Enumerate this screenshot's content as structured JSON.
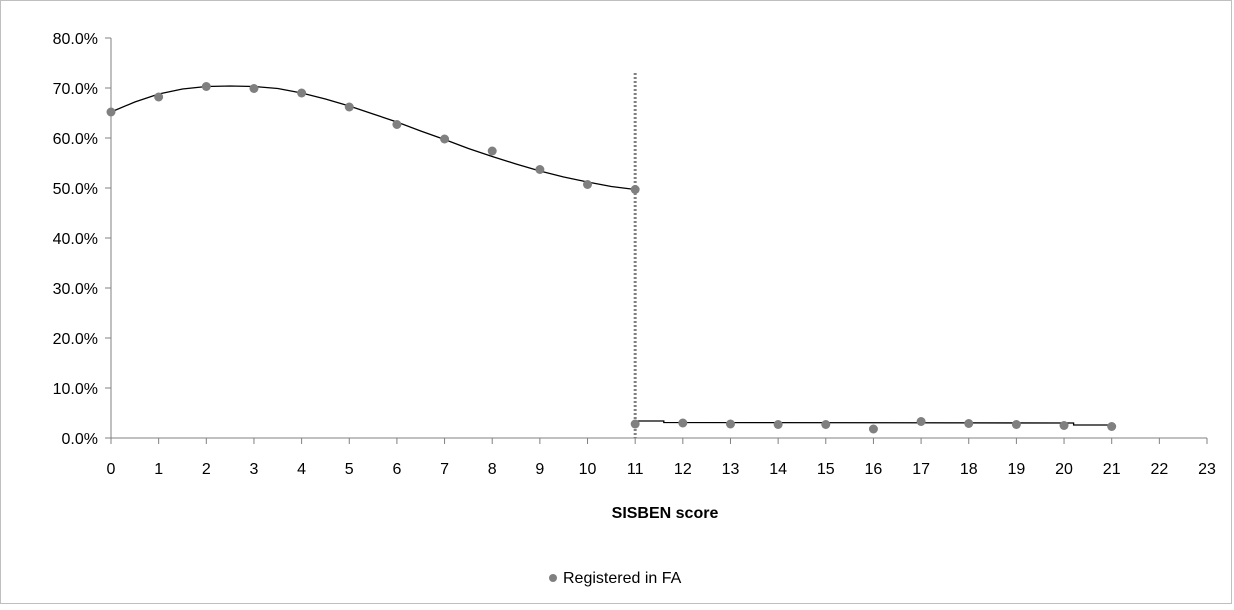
{
  "chart_data": {
    "type": "scatter",
    "xlabel": "SISBEN score",
    "ylabel": "",
    "xlim": [
      0,
      23
    ],
    "ylim": [
      0,
      0.8
    ],
    "x_ticks": [
      "0",
      "1",
      "2",
      "3",
      "4",
      "5",
      "6",
      "7",
      "8",
      "9",
      "10",
      "11",
      "12",
      "13",
      "14",
      "15",
      "16",
      "17",
      "18",
      "19",
      "20",
      "21",
      "22",
      "23"
    ],
    "y_ticks": [
      "0.0%",
      "10.0%",
      "20.0%",
      "30.0%",
      "40.0%",
      "50.0%",
      "60.0%",
      "70.0%",
      "80.0%"
    ],
    "grid": false,
    "legend": {
      "position": "bottom",
      "entries": [
        "Registered in FA"
      ]
    },
    "cutoff_x": 11,
    "series": [
      {
        "name": "Registered in FA",
        "color": "#808080",
        "points": [
          {
            "x": 0,
            "y": 0.652
          },
          {
            "x": 1,
            "y": 0.682
          },
          {
            "x": 2,
            "y": 0.703
          },
          {
            "x": 3,
            "y": 0.699
          },
          {
            "x": 4,
            "y": 0.69
          },
          {
            "x": 5,
            "y": 0.662
          },
          {
            "x": 6,
            "y": 0.627
          },
          {
            "x": 7,
            "y": 0.598
          },
          {
            "x": 8,
            "y": 0.574
          },
          {
            "x": 9,
            "y": 0.537
          },
          {
            "x": 10,
            "y": 0.507
          },
          {
            "x": 11,
            "y": 0.497
          },
          {
            "x": 11,
            "y": 0.028
          },
          {
            "x": 12,
            "y": 0.03
          },
          {
            "x": 13,
            "y": 0.028
          },
          {
            "x": 14,
            "y": 0.027
          },
          {
            "x": 15,
            "y": 0.027
          },
          {
            "x": 16,
            "y": 0.018
          },
          {
            "x": 17,
            "y": 0.033
          },
          {
            "x": 18,
            "y": 0.029
          },
          {
            "x": 19,
            "y": 0.027
          },
          {
            "x": 20,
            "y": 0.025
          },
          {
            "x": 21,
            "y": 0.023
          }
        ]
      }
    ],
    "fit_lines": [
      {
        "color": "#000000",
        "points": [
          {
            "x": 0,
            "y": 0.652
          },
          {
            "x": 0.5,
            "y": 0.672
          },
          {
            "x": 1,
            "y": 0.688
          },
          {
            "x": 1.5,
            "y": 0.698
          },
          {
            "x": 2,
            "y": 0.703
          },
          {
            "x": 2.5,
            "y": 0.704
          },
          {
            "x": 3,
            "y": 0.703
          },
          {
            "x": 3.5,
            "y": 0.699
          },
          {
            "x": 4,
            "y": 0.69
          },
          {
            "x": 4.5,
            "y": 0.678
          },
          {
            "x": 5,
            "y": 0.664
          },
          {
            "x": 5.5,
            "y": 0.648
          },
          {
            "x": 6,
            "y": 0.632
          },
          {
            "x": 6.5,
            "y": 0.614
          },
          {
            "x": 7,
            "y": 0.597
          },
          {
            "x": 7.5,
            "y": 0.579
          },
          {
            "x": 8,
            "y": 0.563
          },
          {
            "x": 8.5,
            "y": 0.548
          },
          {
            "x": 9,
            "y": 0.534
          },
          {
            "x": 9.5,
            "y": 0.522
          },
          {
            "x": 10,
            "y": 0.512
          },
          {
            "x": 10.5,
            "y": 0.503
          },
          {
            "x": 11,
            "y": 0.497
          }
        ]
      },
      {
        "color": "#000000",
        "points": [
          {
            "x": 11,
            "y": 0.034
          },
          {
            "x": 11.6,
            "y": 0.034
          },
          {
            "x": 11.6,
            "y": 0.031
          },
          {
            "x": 20.2,
            "y": 0.03
          },
          {
            "x": 20.2,
            "y": 0.026
          },
          {
            "x": 21,
            "y": 0.026
          }
        ]
      }
    ]
  }
}
